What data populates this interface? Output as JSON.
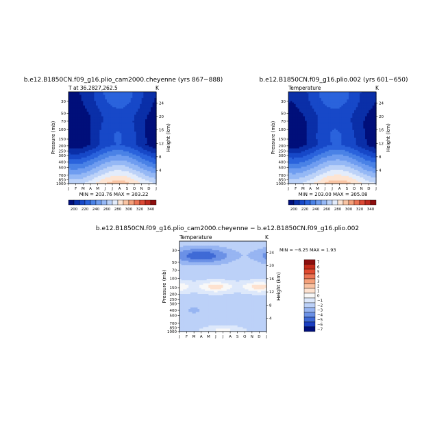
{
  "colors": {
    "abs_palette": [
      "#000f7a",
      "#0a2fa8",
      "#1748c8",
      "#2a63dc",
      "#4a82e6",
      "#6f9df0",
      "#95b8f5",
      "#bcd2f8",
      "#e3ecfb",
      "#fde4d2",
      "#f9c4a3",
      "#f4a07a",
      "#ec7454",
      "#dc4a35",
      "#bf2a1f",
      "#8c0e0e"
    ],
    "diff_palette": [
      "#000f7a",
      "#1a3ec2",
      "#3f6ad6",
      "#6b91e6",
      "#97b5f2",
      "#bcd1f8",
      "#dde8fb",
      "#f8f8f8",
      "#fde2d0",
      "#f9c2a2",
      "#f4a07a",
      "#ec7454",
      "#e04a30",
      "#c42a1a",
      "#8c0e0e"
    ]
  },
  "chart_data": [
    {
      "type": "heatmap",
      "title": "b.e12.B1850CN.f09_g16.plio_cam2000.cheyenne (yrs 867−888)",
      "subtitle_left": "T at 36.2827,262.5",
      "subtitle_right": "K",
      "xlabel": "",
      "ylabel": "Pressure (mb)",
      "ylabel_right": "Height (km)",
      "x_ticklabels": [
        "J",
        "F",
        "M",
        "A",
        "M",
        "J",
        "J",
        "A",
        "S",
        "O",
        "N",
        "D",
        "J"
      ],
      "y_ticklabels": [
        "30",
        "50",
        "70",
        "100",
        "150",
        "200",
        "250",
        "300",
        "400",
        "500",
        "700",
        "850",
        "1000"
      ],
      "y_right_ticklabels": [
        "24",
        "20",
        "16",
        "12",
        "8",
        "4"
      ],
      "stats": "MIN = 203.76   MAX = 303.22",
      "colorbar_labels": [
        "200",
        "220",
        "240",
        "260",
        "280",
        "300",
        "320",
        "340"
      ],
      "colorbar_range": [
        190,
        350
      ],
      "colorbar_step": 10,
      "min": 203.76,
      "max": 303.22
    },
    {
      "type": "heatmap",
      "title": "b.e12.B1850CN.f09_g16.plio.002 (yrs 601−650)",
      "subtitle_left": "Temperature",
      "subtitle_right": "K",
      "xlabel": "",
      "ylabel": "Pressure (mb)",
      "ylabel_right": "Height (km)",
      "x_ticklabels": [
        "J",
        "F",
        "M",
        "A",
        "M",
        "J",
        "J",
        "A",
        "S",
        "O",
        "N",
        "D",
        "J"
      ],
      "y_ticklabels": [
        "30",
        "50",
        "70",
        "100",
        "150",
        "200",
        "250",
        "300",
        "400",
        "500",
        "700",
        "850",
        "1000"
      ],
      "y_right_ticklabels": [
        "24",
        "20",
        "16",
        "12",
        "8",
        "4"
      ],
      "stats": "MIN = 203.00   MAX = 305.08",
      "colorbar_labels": [
        "200",
        "220",
        "240",
        "260",
        "280",
        "300",
        "320",
        "340"
      ],
      "colorbar_range": [
        190,
        350
      ],
      "colorbar_step": 10,
      "min": 203.0,
      "max": 305.08
    },
    {
      "type": "heatmap",
      "title": "b.e12.B1850CN.f09_g16.plio_cam2000.cheyenne − b.e12.B1850CN.f09_g16.plio.002",
      "subtitle_left": "Temperature",
      "subtitle_right": "K",
      "xlabel": "",
      "ylabel": "Pressure (mb)",
      "ylabel_right": "Height (km)",
      "x_ticklabels": [
        "J",
        "F",
        "M",
        "A",
        "M",
        "J",
        "J",
        "A",
        "S",
        "O",
        "N",
        "D",
        "J"
      ],
      "y_ticklabels": [
        "30",
        "50",
        "70",
        "100",
        "150",
        "200",
        "250",
        "300",
        "400",
        "500",
        "700",
        "850",
        "1000"
      ],
      "y_right_ticklabels": [
        "24",
        "20",
        "16",
        "12",
        "8",
        "4"
      ],
      "stats": "MIN =   −6.25  MAX =    1.93",
      "colorbar_labels": [
        "7",
        "6",
        "5",
        "4",
        "3",
        "2",
        "1",
        "0",
        "−1",
        "−2",
        "−3",
        "−4",
        "−5",
        "−6",
        "−7"
      ],
      "min": -6.25,
      "max": 1.93
    }
  ]
}
